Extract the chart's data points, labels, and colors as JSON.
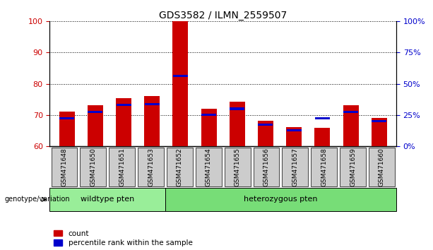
{
  "title": "GDS3582 / ILMN_2559507",
  "categories": [
    "GSM471648",
    "GSM471650",
    "GSM471651",
    "GSM471653",
    "GSM471652",
    "GSM471654",
    "GSM471655",
    "GSM471656",
    "GSM471657",
    "GSM471658",
    "GSM471659",
    "GSM471660"
  ],
  "red_tops": [
    71.0,
    73.2,
    75.5,
    76.0,
    100.0,
    72.0,
    74.2,
    68.2,
    66.2,
    66.0,
    73.2,
    69.0
  ],
  "blue_tops": [
    69.0,
    71.0,
    73.2,
    73.5,
    82.5,
    70.0,
    72.0,
    67.0,
    65.2,
    69.0,
    71.0,
    68.0
  ],
  "ymin": 60,
  "ymax": 100,
  "yticks_left": [
    60,
    70,
    80,
    90,
    100
  ],
  "yticks_right": [
    0,
    25,
    50,
    75,
    100
  ],
  "yticks_right_pos": [
    60,
    70,
    80,
    90,
    100
  ],
  "wildtype_count": 4,
  "heterozygous_count": 8,
  "wildtype_label": "wildtype pten",
  "heterozygous_label": "heterozygous pten",
  "genotype_label": "genotype/variation",
  "legend_red": "count",
  "legend_blue": "percentile rank within the sample",
  "bar_width": 0.55,
  "red_color": "#CC0000",
  "blue_color": "#0000CC",
  "bar_bottom": 60,
  "wildtype_bg": "#99EE99",
  "heterozygous_bg": "#77DD77",
  "sample_bg": "#CCCCCC",
  "title_fontsize": 10,
  "tick_fontsize": 8,
  "grid_color": "#000000",
  "right_tick_color": "#0000CC",
  "left_tick_color": "#CC0000"
}
